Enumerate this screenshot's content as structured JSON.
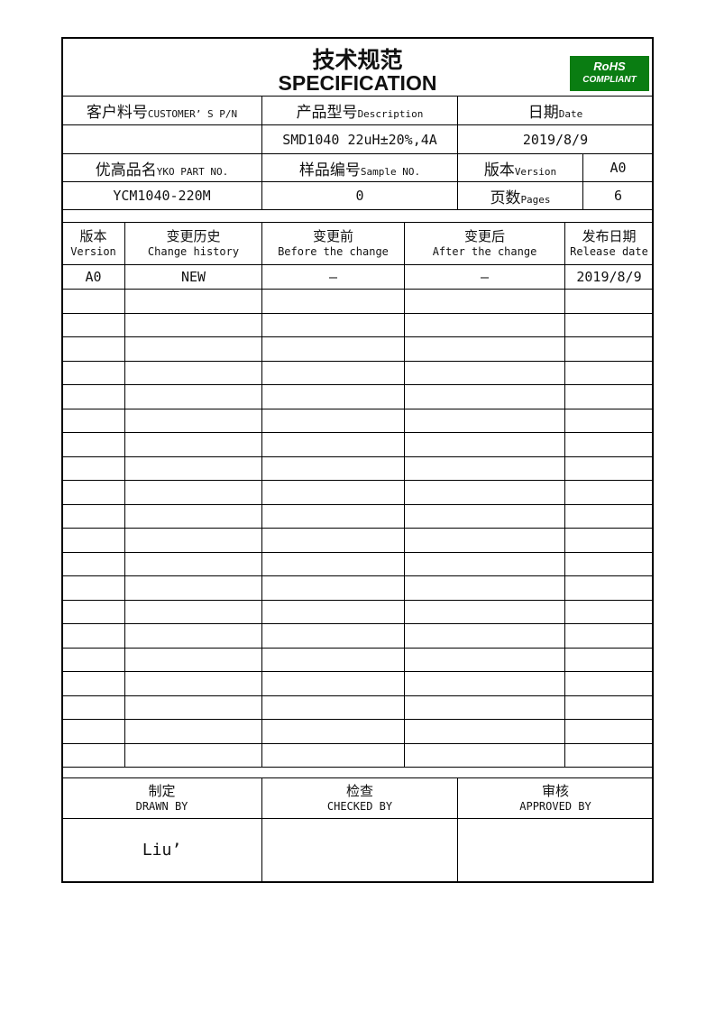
{
  "title_zh": "技术规范",
  "title_en": "SPECIFICATION",
  "rohs": {
    "line1": "RoHS",
    "line2": "COMPLIANT",
    "color": "#0a7d12"
  },
  "info": {
    "customer_pn_zh": "客户料号",
    "customer_pn_en": "CUSTOMER’ S P/N",
    "customer_pn_value": "",
    "description_zh": "产品型号",
    "description_en": "Description",
    "description_value": "SMD1040 22uH±20%,4A",
    "date_zh": "日期",
    "date_en": "Date",
    "date_value": "2019/8/9",
    "part_no_zh": "优高品名",
    "part_no_en": "YKO PART NO.",
    "part_no_value": "YCM1040-220M",
    "sample_zh": "样品编号",
    "sample_en": "Sample NO.",
    "sample_value": "0",
    "version_zh": "版本",
    "version_en": "Version",
    "version_value": "A0",
    "pages_zh": "页数",
    "pages_en": "Pages",
    "pages_value": "6"
  },
  "history": {
    "headers": [
      {
        "zh": "版本",
        "en": "Version"
      },
      {
        "zh": "变更历史",
        "en": "Change history"
      },
      {
        "zh": "变更前",
        "en": "Before the change"
      },
      {
        "zh": "变更后",
        "en": "After the change"
      },
      {
        "zh": "发布日期",
        "en": "Release date"
      }
    ],
    "rows": [
      [
        "A0",
        "NEW",
        "—",
        "—",
        "2019/8/9"
      ]
    ]
  },
  "signoff": {
    "drawn_zh": "制定",
    "drawn_en": "DRAWN BY",
    "drawn_value": "Liu’",
    "checked_zh": "检查",
    "checked_en": "CHECKED BY",
    "checked_value": "",
    "approved_zh": "审核",
    "approved_en": "APPROVED BY",
    "approved_value": ""
  }
}
